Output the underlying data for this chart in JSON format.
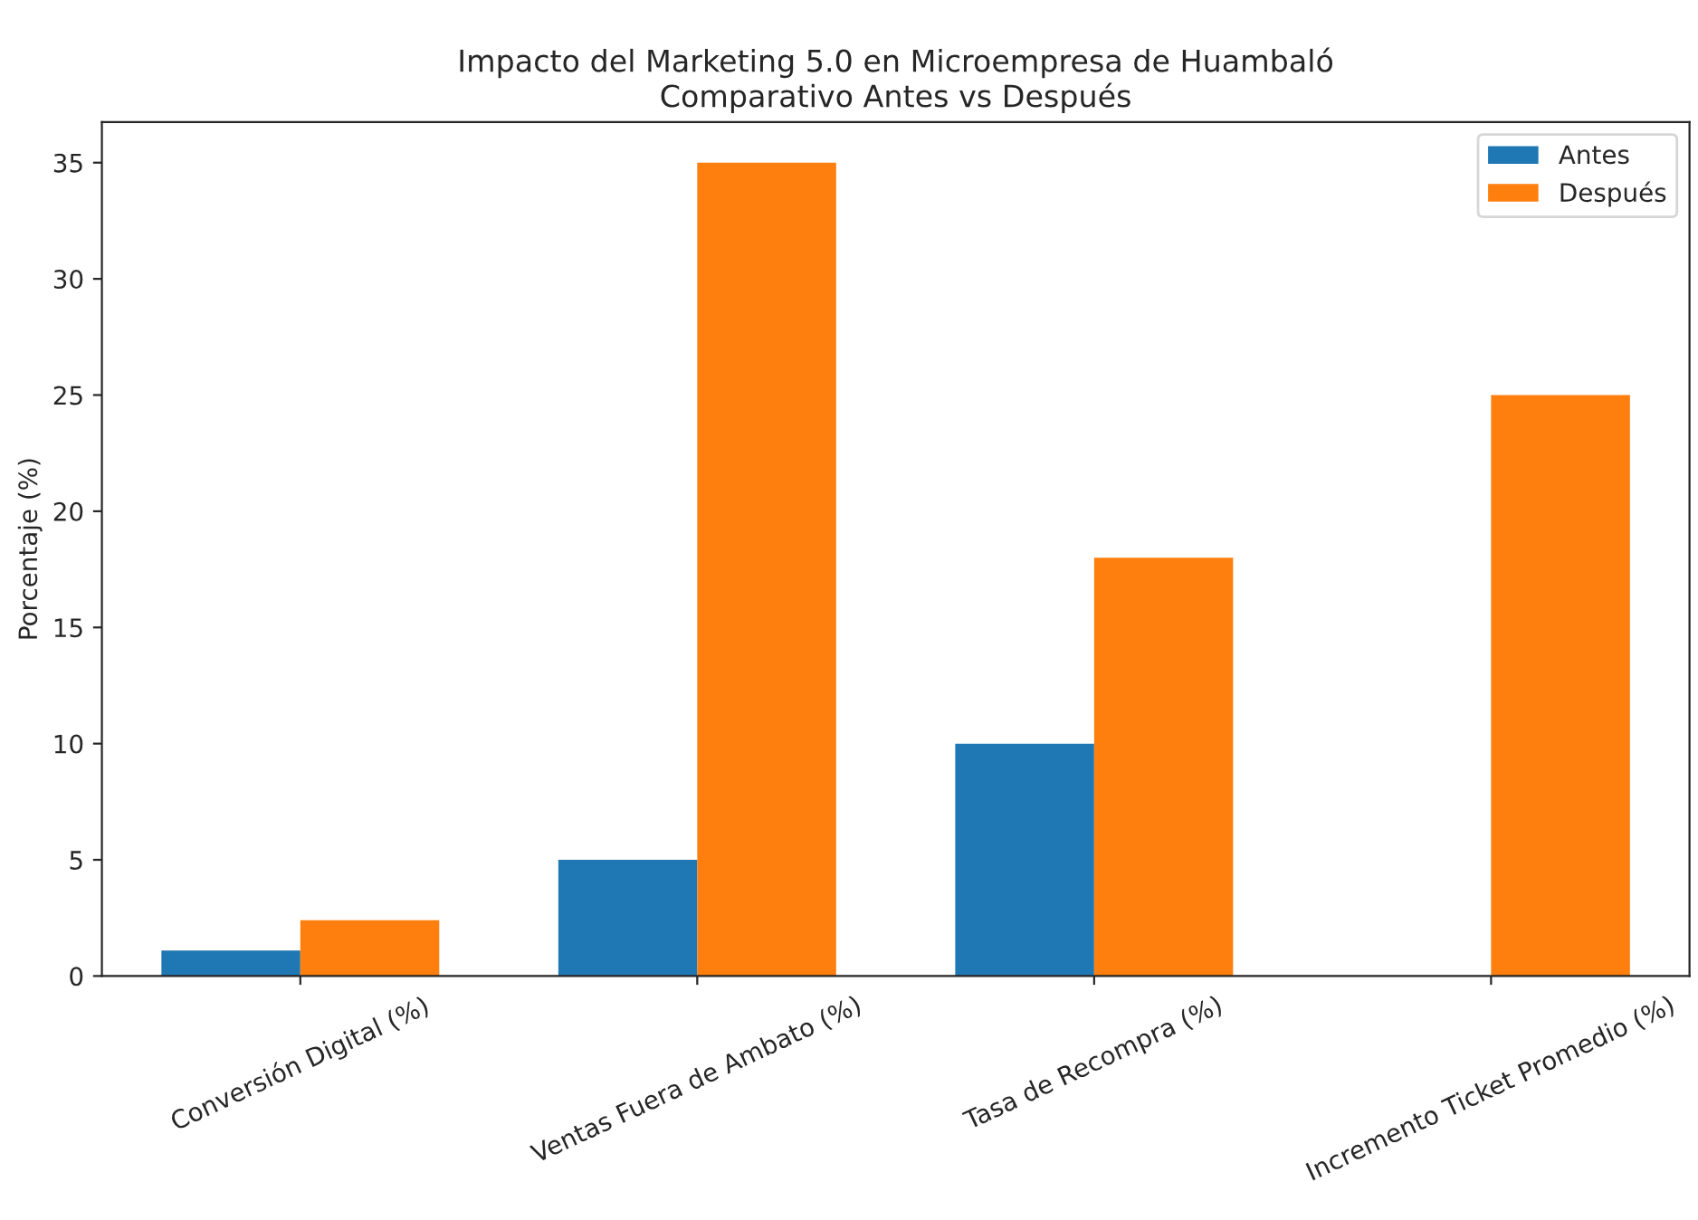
{
  "chart_data": {
    "type": "bar",
    "title": "Impacto del Marketing 5.0 en Microempresa de Huambaló\nComparativo Antes vs Después",
    "ylabel": "Porcentaje (%)",
    "categories": [
      "Conversión Digital (%)",
      "Ventas Fuera de Ambato (%)",
      "Tasa de Recompra (%)",
      "Incremento Ticket Promedio (%)"
    ],
    "series": [
      {
        "name": "Antes",
        "color": "#1f77b4",
        "values": [
          1.1,
          5,
          10,
          null
        ]
      },
      {
        "name": "Después",
        "color": "#ff7f0e",
        "values": [
          2.4,
          35,
          18,
          25
        ]
      }
    ],
    "ylim": [
      0,
      36.75
    ],
    "yticks": [
      0,
      5,
      10,
      15,
      20,
      25,
      30,
      35
    ],
    "legend": "top right",
    "grid": false
  }
}
